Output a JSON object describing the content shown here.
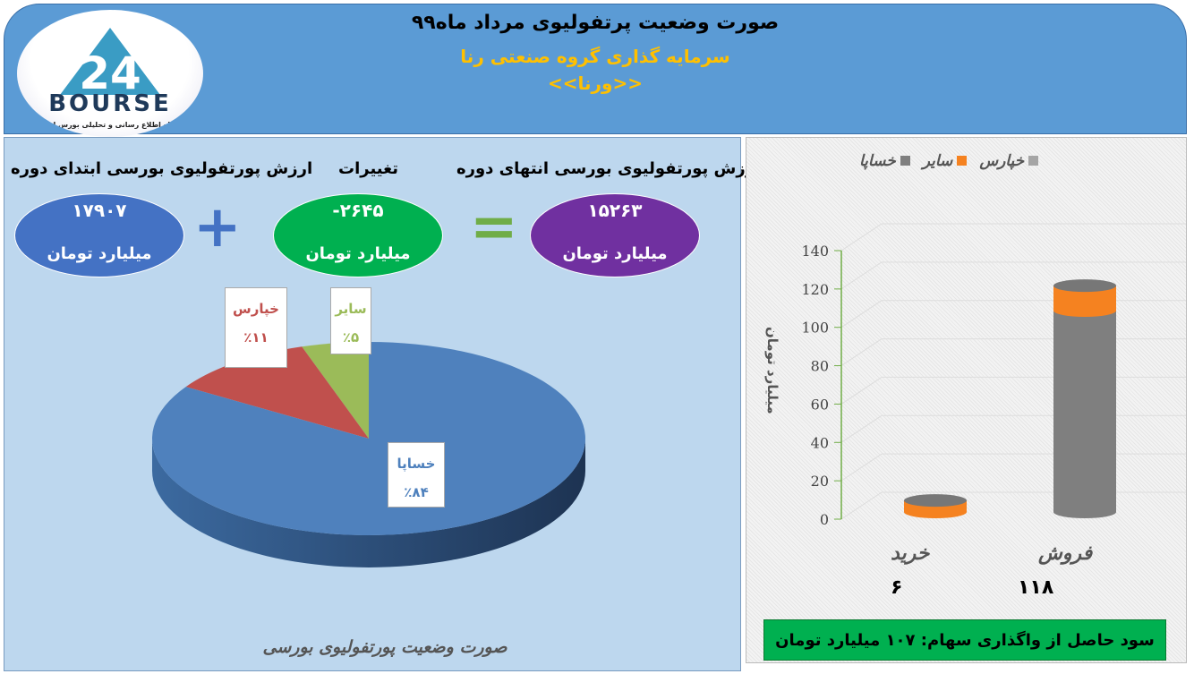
{
  "header": {
    "title": "صورت وضعیت پرتفولیوی مرداد ماه۹۹",
    "subtitle": "سرمایه گذاری گروه صنعتی رنا",
    "ticker": "<<ورنا>>"
  },
  "logo": {
    "text": "BOURSE",
    "tagline": "پایگاه اطلاع رسانی و تحلیلی بورس ایران"
  },
  "summary": {
    "start": {
      "label": "ارزش پورتفولیوی بورسی ابتدای دوره",
      "value": "۱۷۹۰۷",
      "unit": "میلیارد تومان",
      "color": "#4472c4"
    },
    "change": {
      "label": "تغییرات",
      "value": "-۲۶۴۵",
      "unit": "میلیارد تومان",
      "color": "#00b050"
    },
    "end": {
      "label": "ارزش پورتفولیوی بورسی انتهای دوره",
      "value": "۱۵۲۶۳",
      "unit": "میلیارد تومان",
      "color": "#7030a0"
    },
    "plus": "+",
    "equals": "="
  },
  "chart_data": [
    {
      "type": "pie",
      "title": "صورت وضعیت پورتفولیوی بورسی",
      "slices": [
        {
          "name": "سایر",
          "value": 5,
          "label": "٪۵",
          "color": "#9bbb59"
        },
        {
          "name": "خپارس",
          "value": 11,
          "label": "٪۱۱",
          "color": "#c0504d"
        },
        {
          "name": "خساپا",
          "value": 84,
          "label": "٪۸۴",
          "color": "#4f81bd"
        }
      ]
    },
    {
      "type": "bar",
      "stacked": true,
      "ylabel": "میلیارد تومان",
      "ylim": [
        0,
        140
      ],
      "yticks": [
        0,
        20,
        40,
        60,
        80,
        100,
        120,
        140
      ],
      "categories": [
        "خرید",
        "فروش"
      ],
      "totals": [
        "۶",
        "۱۱۸"
      ],
      "series": [
        {
          "name": "خساپا",
          "values": [
            0,
            105
          ],
          "color": "#7f7f7f"
        },
        {
          "name": "سایر",
          "values": [
            6,
            13
          ],
          "color": "#f58220"
        },
        {
          "name": "خپارس",
          "values": [
            0,
            0
          ],
          "color": "#a5a5a5"
        }
      ],
      "legend": "top"
    }
  ],
  "profit": "سود حاصل از واگذاری سهام: ۱۰۷  میلیارد تومان"
}
